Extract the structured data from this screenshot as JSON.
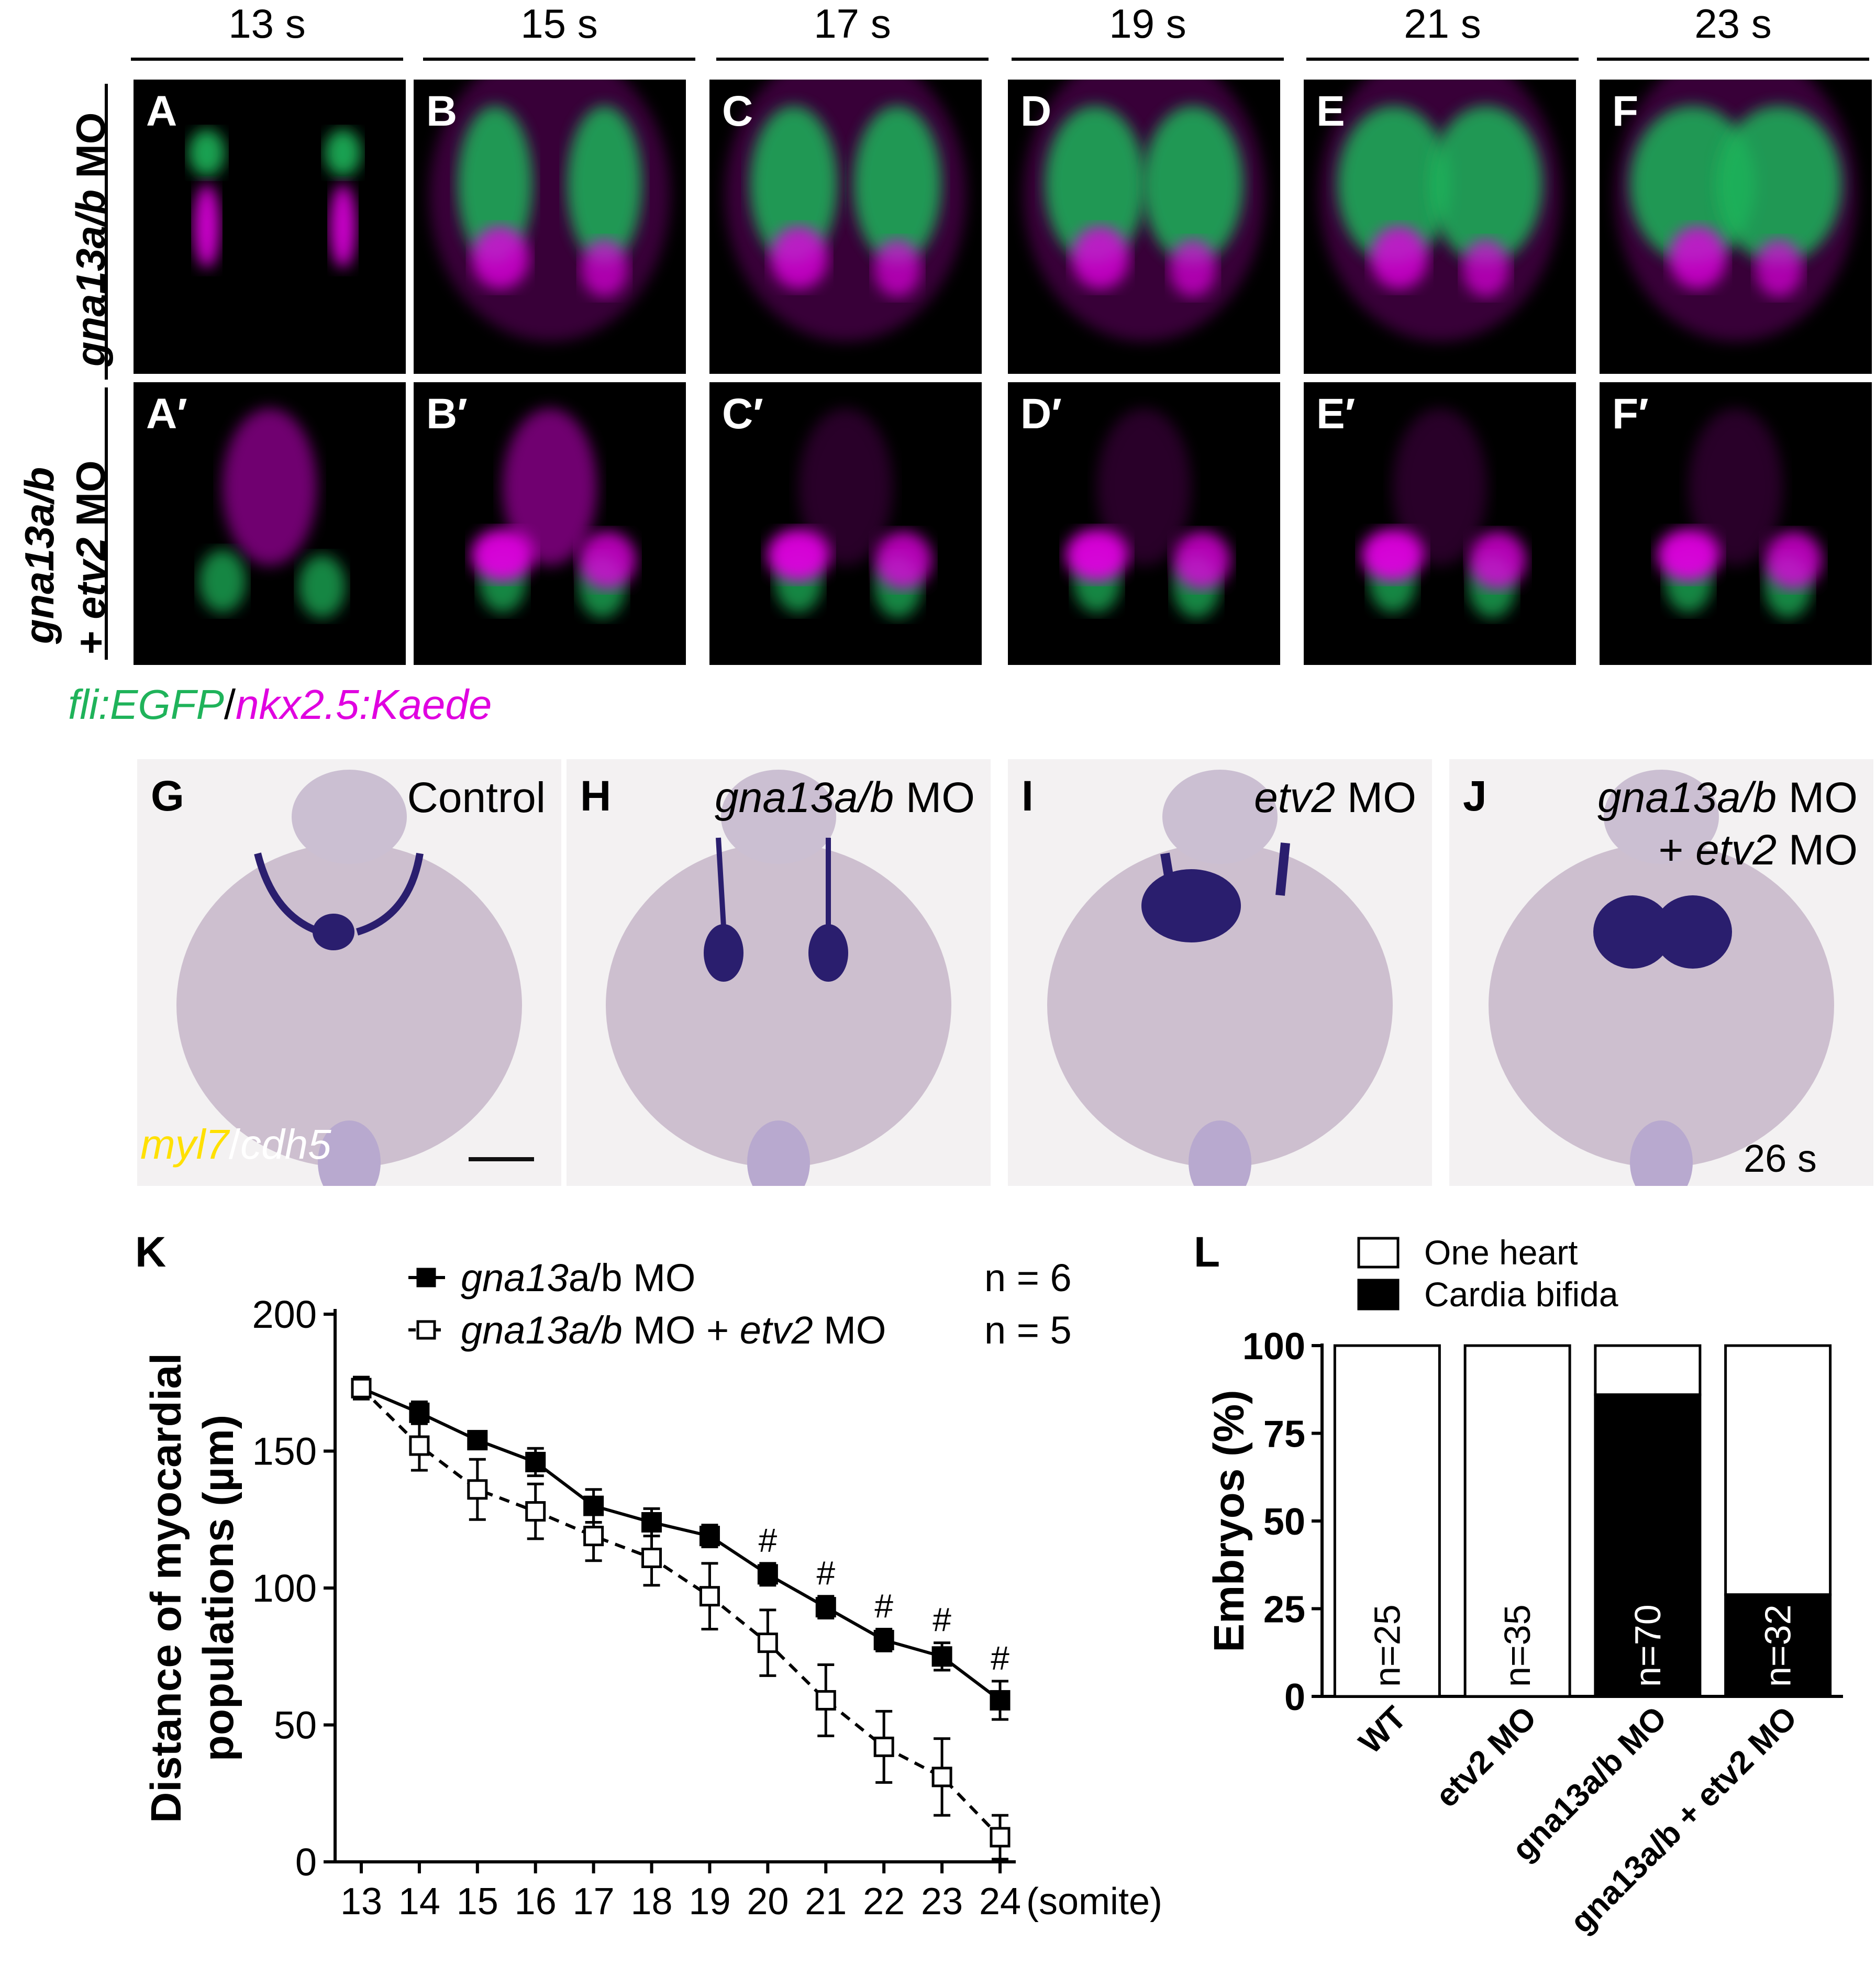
{
  "timepoints": [
    "13 s",
    "15 s",
    "17 s",
    "19 s",
    "21 s",
    "23 s"
  ],
  "row1": {
    "label_italic": "gna13a/b",
    "label_rest": " MO",
    "panels": [
      "A",
      "B",
      "C",
      "D",
      "E",
      "F"
    ]
  },
  "row2": {
    "label_line1": "gna13a/b",
    "label_line2_prefix": "+ ",
    "label_line2_italic": "etv2",
    "label_line2_rest": " MO",
    "panels": [
      "A′",
      "B′",
      "C′",
      "D′",
      "E′",
      "F′"
    ]
  },
  "fluor_legend": {
    "green": "fli:EGFP",
    "sep": "/",
    "magenta": "nkx2.5:Kaede"
  },
  "ish_panels": [
    {
      "letter": "G",
      "cond_italic": "",
      "cond_rest": "Control",
      "line2_prefix": "",
      "line2_italic": "",
      "line2_rest": ""
    },
    {
      "letter": "H",
      "cond_italic": "gna13a/b",
      "cond_rest": " MO",
      "line2_prefix": "",
      "line2_italic": "",
      "line2_rest": ""
    },
    {
      "letter": "I",
      "cond_italic": "etv2",
      "cond_rest": " MO",
      "line2_prefix": "",
      "line2_italic": "",
      "line2_rest": ""
    },
    {
      "letter": "J",
      "cond_italic": "gna13a/b",
      "cond_rest": " MO",
      "line2_prefix": "+ ",
      "line2_italic": "etv2",
      "line2_rest": " MO"
    }
  ],
  "ish_legend": {
    "yellow": "myl7",
    "sep": "/",
    "white": "cdh5"
  },
  "ish_stage": "26 s",
  "colors": {
    "green": "#1fb35a",
    "magenta": "#e000e0",
    "yellow": "#ffe000",
    "stain": "#2a1e6e"
  },
  "chart_data": [
    {
      "panel": "K",
      "type": "line",
      "ylabel_line1": "Distance of myocardial",
      "ylabel_line2": "populations (µm)",
      "xlabel": "(somite)",
      "x": [
        13,
        14,
        15,
        16,
        17,
        18,
        19,
        20,
        21,
        22,
        23,
        24
      ],
      "ylim": [
        0,
        200
      ],
      "yticks": [
        0,
        50,
        100,
        150,
        200
      ],
      "series": [
        {
          "name_italic": "gna13",
          "name_rest": "a/b MO",
          "n": "n = 6",
          "marker": "filled-square",
          "style": "solid",
          "values": [
            173,
            164,
            154,
            146,
            130,
            124,
            119,
            105,
            93,
            81,
            75,
            59
          ],
          "errors": [
            4,
            4,
            2,
            5,
            6,
            5,
            4,
            4,
            4,
            4,
            5,
            7
          ]
        },
        {
          "name_italic": "gna13a/b",
          "name_rest": " MO + ",
          "name_italic2": "etv2",
          "name_rest2": " MO",
          "n": "n = 5",
          "marker": "open-square",
          "style": "dashed",
          "values": [
            173,
            152,
            136,
            128,
            119,
            111,
            97,
            80,
            59,
            42,
            31,
            9
          ],
          "errors": [
            4,
            9,
            11,
            10,
            9,
            10,
            12,
            12,
            13,
            13,
            14,
            8
          ]
        }
      ],
      "significance": {
        "symbol": "#",
        "x": [
          20,
          21,
          22,
          23,
          24
        ]
      }
    },
    {
      "panel": "L",
      "type": "bar",
      "ylabel": "Embryos (%)",
      "ylim": [
        0,
        100
      ],
      "yticks": [
        0,
        25,
        50,
        75,
        100
      ],
      "legend": [
        "One heart",
        "Cardia bifida"
      ],
      "categories": [
        "WT",
        "etv2 MO",
        "gna13a/b MO",
        "gna13a/b + etv2 MO"
      ],
      "series": [
        {
          "name": "Cardia bifida",
          "values": [
            0,
            0,
            86,
            29
          ]
        },
        {
          "name": "One heart",
          "values": [
            100,
            100,
            14,
            71
          ]
        }
      ],
      "n_labels": [
        "n=25",
        "n=35",
        "n=70",
        "n=32"
      ]
    }
  ]
}
